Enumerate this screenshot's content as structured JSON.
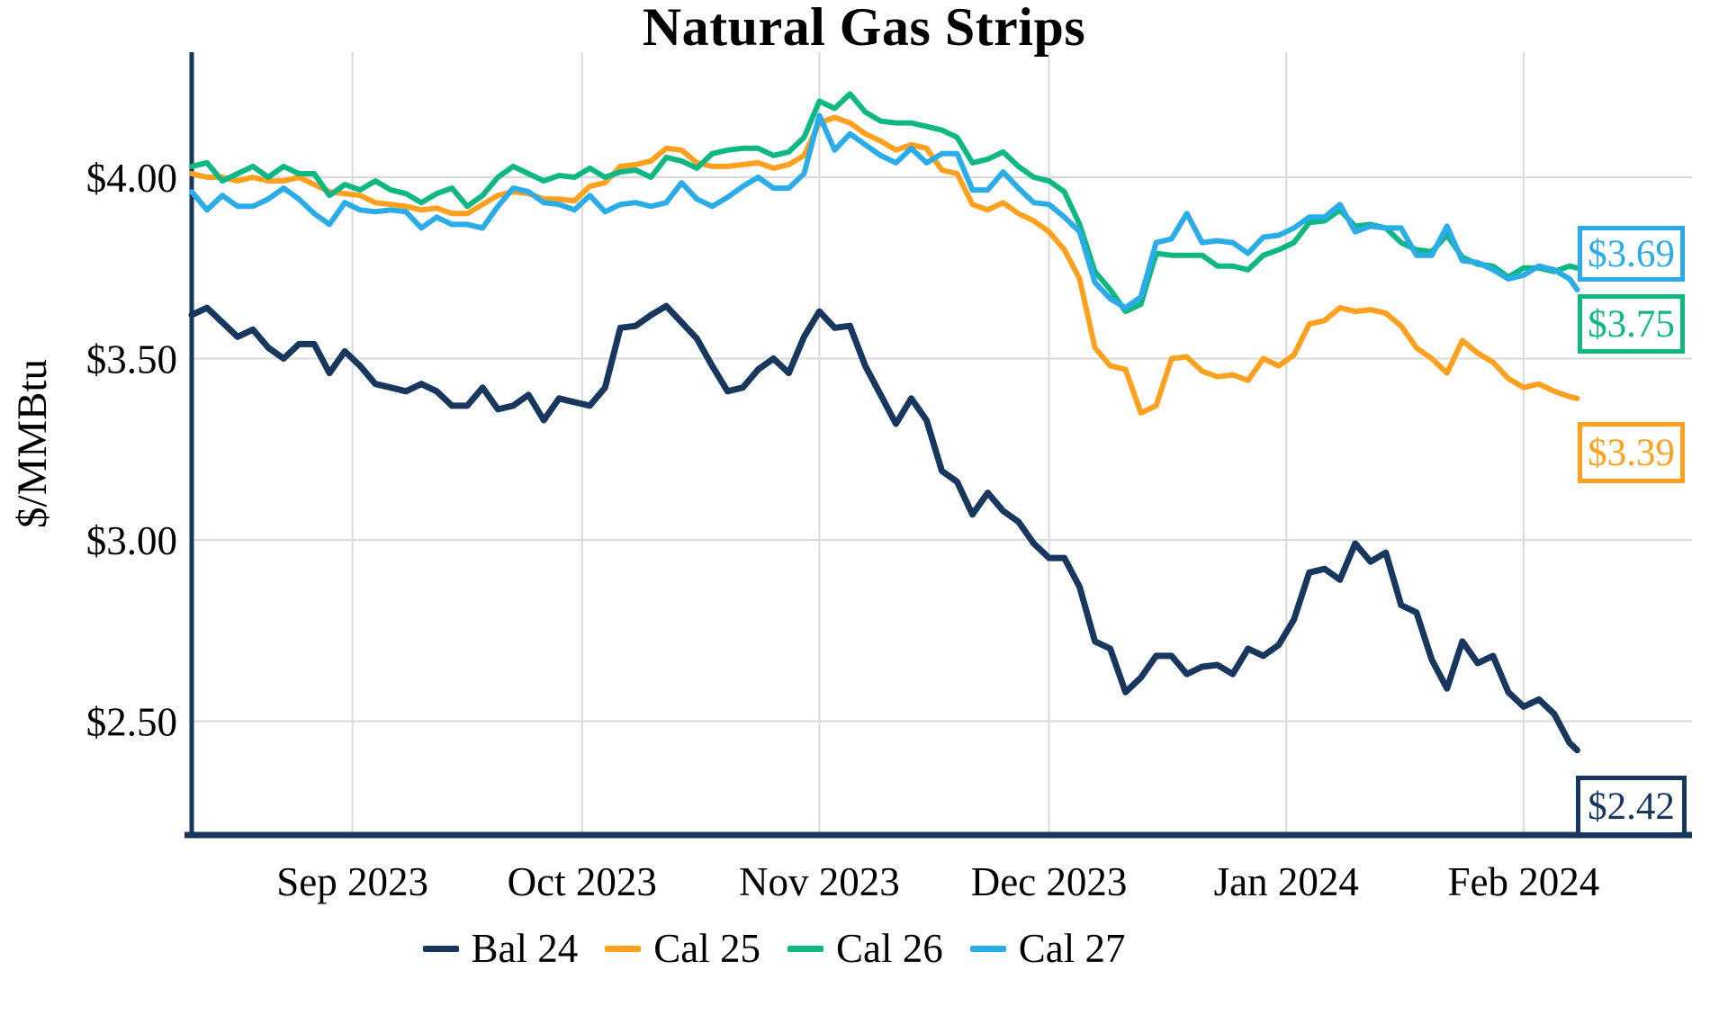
{
  "title": "Natural Gas Strips",
  "chart_data": {
    "type": "line",
    "title": "Natural Gas Strips",
    "xlabel": "",
    "ylabel": "$/MMBtu",
    "grid": true,
    "grid_color": "#D9D9D9",
    "axis_color": "#17375E",
    "legend_position": "bottom",
    "xlim": [
      0,
      196
    ],
    "ylim": [
      2.186,
      4.345
    ],
    "x_ticks": [
      {
        "day": 21,
        "label": "Sep 2023"
      },
      {
        "day": 51,
        "label": "Oct 2023"
      },
      {
        "day": 82,
        "label": "Nov 2023"
      },
      {
        "day": 112,
        "label": "Dec 2023"
      },
      {
        "day": 143,
        "label": "Jan 2024"
      },
      {
        "day": 174,
        "label": "Feb 2024"
      }
    ],
    "y_ticks": [
      {
        "value": 2.5,
        "label": "$2.50"
      },
      {
        "value": 3.0,
        "label": "$3.00"
      },
      {
        "value": 3.5,
        "label": "$3.50"
      },
      {
        "value": 4.0,
        "label": "$4.00"
      }
    ],
    "x_days": [
      0,
      2,
      4,
      6,
      8,
      10,
      12,
      14,
      16,
      18,
      20,
      22,
      24,
      26,
      28,
      30,
      32,
      34,
      36,
      38,
      40,
      42,
      44,
      46,
      48,
      50,
      52,
      54,
      56,
      58,
      60,
      62,
      64,
      66,
      68,
      70,
      72,
      74,
      76,
      78,
      80,
      82,
      84,
      86,
      88,
      90,
      92,
      94,
      96,
      98,
      100,
      102,
      104,
      106,
      108,
      110,
      112,
      114,
      116,
      118,
      120,
      122,
      124,
      126,
      128,
      130,
      132,
      134,
      136,
      138,
      140,
      142,
      144,
      146,
      148,
      150,
      152,
      154,
      156,
      158,
      160,
      162,
      164,
      166,
      168,
      170,
      172,
      174,
      176,
      178,
      180,
      181
    ],
    "series": [
      {
        "name": "Bal 24",
        "color": "#17375E",
        "width": 7,
        "values": [
          3.62,
          3.64,
          3.6,
          3.56,
          3.58,
          3.53,
          3.5,
          3.54,
          3.54,
          3.46,
          3.52,
          3.48,
          3.43,
          3.42,
          3.41,
          3.43,
          3.41,
          3.37,
          3.37,
          3.42,
          3.36,
          3.37,
          3.4,
          3.33,
          3.39,
          3.38,
          3.37,
          3.42,
          3.585,
          3.59,
          3.62,
          3.645,
          3.6,
          3.555,
          3.48,
          3.41,
          3.42,
          3.47,
          3.5,
          3.46,
          3.56,
          3.63,
          3.585,
          3.59,
          3.48,
          3.4,
          3.32,
          3.39,
          3.33,
          3.19,
          3.16,
          3.07,
          3.13,
          3.08,
          3.05,
          2.99,
          2.95,
          2.95,
          2.87,
          2.72,
          2.7,
          2.58,
          2.62,
          2.68,
          2.68,
          2.63,
          2.65,
          2.655,
          2.63,
          2.7,
          2.68,
          2.71,
          2.78,
          2.91,
          2.92,
          2.89,
          2.99,
          2.94,
          2.965,
          2.82,
          2.8,
          2.67,
          2.59,
          2.72,
          2.66,
          2.68,
          2.58,
          2.54,
          2.56,
          2.52,
          2.44,
          2.42
        ]
      },
      {
        "name": "Cal 25",
        "color": "#FFA11E",
        "width": 6,
        "values": [
          4.01,
          4.0,
          4.0,
          3.99,
          4.0,
          3.99,
          3.99,
          4.0,
          3.98,
          3.96,
          3.955,
          3.95,
          3.93,
          3.925,
          3.92,
          3.91,
          3.915,
          3.9,
          3.9,
          3.925,
          3.95,
          3.96,
          3.955,
          3.94,
          3.94,
          3.935,
          3.975,
          3.985,
          4.03,
          4.035,
          4.045,
          4.08,
          4.075,
          4.04,
          4.03,
          4.03,
          4.035,
          4.04,
          4.025,
          4.035,
          4.06,
          4.15,
          4.165,
          4.15,
          4.12,
          4.1,
          4.075,
          4.09,
          4.08,
          4.02,
          4.01,
          3.925,
          3.91,
          3.93,
          3.9,
          3.88,
          3.85,
          3.8,
          3.72,
          3.53,
          3.48,
          3.47,
          3.35,
          3.37,
          3.5,
          3.505,
          3.465,
          3.45,
          3.455,
          3.44,
          3.5,
          3.48,
          3.51,
          3.595,
          3.605,
          3.64,
          3.63,
          3.635,
          3.625,
          3.59,
          3.53,
          3.5,
          3.46,
          3.55,
          3.515,
          3.49,
          3.445,
          3.42,
          3.43,
          3.41,
          3.395,
          3.39
        ]
      },
      {
        "name": "Cal 26",
        "color": "#0FB783",
        "width": 6,
        "values": [
          4.03,
          4.04,
          3.99,
          4.01,
          4.03,
          4.0,
          4.03,
          4.01,
          4.01,
          3.95,
          3.98,
          3.965,
          3.99,
          3.965,
          3.955,
          3.93,
          3.955,
          3.97,
          3.92,
          3.95,
          4.0,
          4.03,
          4.01,
          3.99,
          4.005,
          4.0,
          4.025,
          4.0,
          4.015,
          4.02,
          4.0,
          4.055,
          4.045,
          4.025,
          4.065,
          4.075,
          4.08,
          4.08,
          4.06,
          4.07,
          4.11,
          4.21,
          4.19,
          4.23,
          4.18,
          4.155,
          4.15,
          4.15,
          4.14,
          4.13,
          4.11,
          4.04,
          4.05,
          4.07,
          4.03,
          4.0,
          3.99,
          3.96,
          3.87,
          3.74,
          3.69,
          3.63,
          3.65,
          3.79,
          3.785,
          3.785,
          3.785,
          3.755,
          3.755,
          3.745,
          3.785,
          3.8,
          3.82,
          3.875,
          3.88,
          3.91,
          3.865,
          3.87,
          3.86,
          3.82,
          3.8,
          3.795,
          3.84,
          3.78,
          3.76,
          3.755,
          3.725,
          3.75,
          3.75,
          3.74,
          3.755,
          3.75
        ]
      },
      {
        "name": "Cal 27",
        "color": "#2AACE8",
        "width": 6,
        "values": [
          3.96,
          3.91,
          3.95,
          3.92,
          3.92,
          3.94,
          3.97,
          3.94,
          3.9,
          3.87,
          3.93,
          3.91,
          3.905,
          3.91,
          3.905,
          3.86,
          3.89,
          3.87,
          3.87,
          3.86,
          3.92,
          3.97,
          3.96,
          3.93,
          3.925,
          3.91,
          3.95,
          3.905,
          3.925,
          3.93,
          3.92,
          3.93,
          3.985,
          3.94,
          3.92,
          3.945,
          3.975,
          4.0,
          3.97,
          3.97,
          4.01,
          4.17,
          4.075,
          4.12,
          4.09,
          4.06,
          4.04,
          4.08,
          4.04,
          4.065,
          4.065,
          3.965,
          3.965,
          4.015,
          3.97,
          3.93,
          3.925,
          3.89,
          3.85,
          3.71,
          3.665,
          3.64,
          3.67,
          3.82,
          3.83,
          3.9,
          3.82,
          3.825,
          3.82,
          3.79,
          3.835,
          3.84,
          3.86,
          3.89,
          3.89,
          3.925,
          3.85,
          3.865,
          3.86,
          3.86,
          3.785,
          3.785,
          3.865,
          3.77,
          3.765,
          3.745,
          3.72,
          3.73,
          3.755,
          3.745,
          3.72,
          3.69
        ]
      }
    ],
    "end_labels": [
      {
        "series": "Cal 27",
        "text": "$3.69",
        "color": "#2AACE8"
      },
      {
        "series": "Cal 26",
        "text": "$3.75",
        "color": "#0FB783"
      },
      {
        "series": "Cal 25",
        "text": "$3.39",
        "color": "#FFA11E"
      },
      {
        "series": "Bal 24",
        "text": "$2.42",
        "color": "#17375E"
      }
    ]
  }
}
